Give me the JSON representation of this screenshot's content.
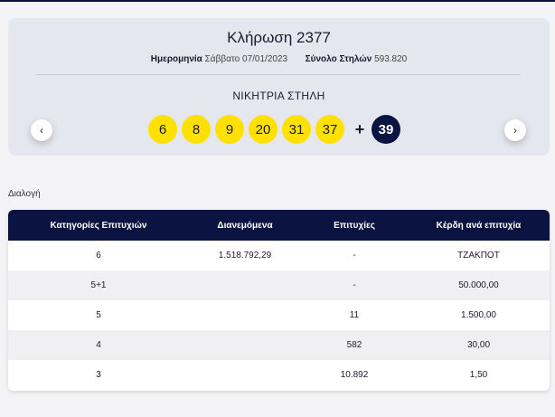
{
  "draw": {
    "title": "Κλήρωση 2377",
    "date_label": "Ημερομηνία",
    "date_value": "Σάββατο 07/01/2023",
    "columns_label": "Σύνολο Στηλών",
    "columns_value": "593.820",
    "winning_label": "ΝΙΚΗΤΡΙΑ ΣΤΗΛΗ",
    "numbers": [
      "6",
      "8",
      "9",
      "20",
      "31",
      "37"
    ],
    "plus": "+",
    "bonus": "39",
    "prev_arrow": "‹",
    "next_arrow": "›"
  },
  "select_label": "Διαλογή",
  "table": {
    "headers": [
      "Κατηγορίες Επιτυχιών",
      "Διανεμόμενα",
      "Επιτυχίες",
      "Κέρδη ανά επιτυχία"
    ],
    "rows": [
      [
        "6",
        "1.518.792,29",
        "-",
        "ΤΖΑΚΠΟΤ"
      ],
      [
        "5+1",
        "",
        "-",
        "50.000,00"
      ],
      [
        "5",
        "",
        "11",
        "1.500,00"
      ],
      [
        "4",
        "",
        "582",
        "30,00"
      ],
      [
        "3",
        "",
        "10.892",
        "1,50"
      ]
    ]
  },
  "colors": {
    "navy": "#0b1440",
    "ball_yellow": "#ffe100",
    "card_bg": "#e5e7ef"
  }
}
